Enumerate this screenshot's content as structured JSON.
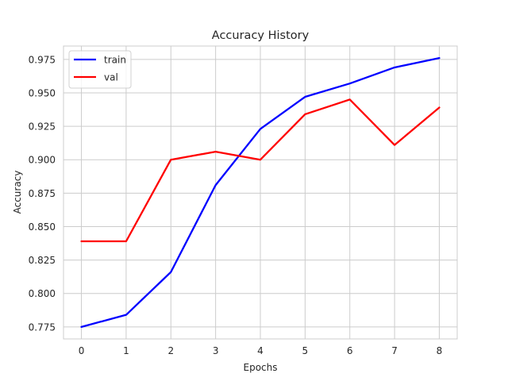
{
  "chart_data": {
    "type": "line",
    "title": "Accuracy History",
    "xlabel": "Epochs",
    "ylabel": "Accuracy",
    "x": [
      0,
      1,
      2,
      3,
      4,
      5,
      6,
      7,
      8
    ],
    "x_ticks": [
      "0",
      "1",
      "2",
      "3",
      "4",
      "5",
      "6",
      "7",
      "8"
    ],
    "y_ticks": [
      "0.775",
      "0.800",
      "0.825",
      "0.850",
      "0.875",
      "0.900",
      "0.925",
      "0.950",
      "0.975"
    ],
    "xlim": [
      -0.4,
      8.4
    ],
    "ylim": [
      0.766,
      0.985
    ],
    "grid": true,
    "legend_position": "upper-left",
    "series": [
      {
        "name": "train",
        "color": "#0000ff",
        "values": [
          0.775,
          0.784,
          0.816,
          0.881,
          0.923,
          0.947,
          0.957,
          0.969,
          0.976
        ]
      },
      {
        "name": "val",
        "color": "#ff0000",
        "values": [
          0.839,
          0.839,
          0.9,
          0.906,
          0.9,
          0.934,
          0.945,
          0.911,
          0.939
        ]
      }
    ]
  }
}
